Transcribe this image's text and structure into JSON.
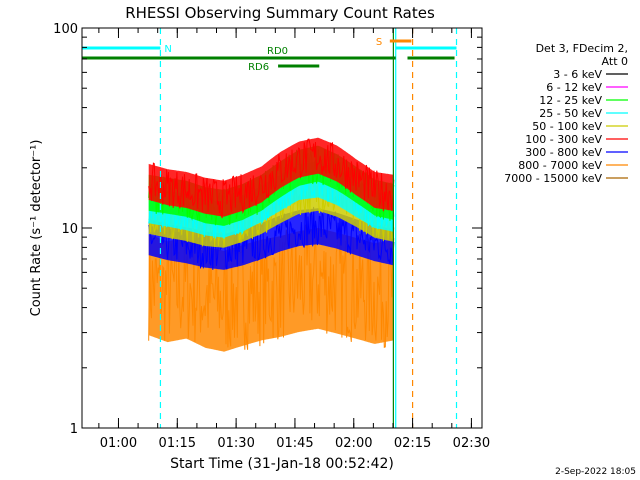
{
  "chart_data": {
    "type": "line",
    "title": "RHESSI Observing Summary Count Rates",
    "xlabel": "Start Time (31-Jan-18 00:52:42)",
    "ylabel": "Count Rate (s⁻¹ detector⁻¹)",
    "yscale": "log",
    "ylim": [
      1,
      100
    ],
    "xlim_minutes": [
      -2,
      100
    ],
    "x_tick_labels": [
      "01:00",
      "01:15",
      "01:30",
      "01:45",
      "02:00",
      "02:15",
      "02:30"
    ],
    "x_tick_minutes": [
      7.3,
      22.3,
      37.3,
      52.3,
      67.3,
      82.3,
      97.3
    ],
    "y_tick_labels": [
      "1",
      "10",
      "100"
    ],
    "y_tick_values": [
      1,
      10,
      100
    ],
    "legend": {
      "header": [
        "Det 3, FDecim 2,",
        "Att 0"
      ],
      "entries": [
        {
          "label": "3 - 6 keV",
          "color": "#000000"
        },
        {
          "label": "6 - 12 keV",
          "color": "#ff00ff"
        },
        {
          "label": "12 - 25 keV",
          "color": "#00ff00"
        },
        {
          "label": "25 - 50 keV",
          "color": "#00ffff"
        },
        {
          "label": "50 - 100 keV",
          "color": "#cccc00"
        },
        {
          "label": "100 - 300 keV",
          "color": "#ff0000"
        },
        {
          "label": "300 - 800 keV",
          "color": "#0000ff"
        },
        {
          "label": "800 - 7000 keV",
          "color": "#ff8800"
        },
        {
          "label": "7000 - 15000 keV",
          "color": "#aa6600"
        }
      ]
    },
    "data_window_minutes": [
      15,
      77.5
    ],
    "series": [
      {
        "name": "800 - 7000 keV",
        "color": "#ff8800",
        "values": [
          5.2,
          4.8,
          5.0,
          4.5,
          4.3,
          4.6,
          4.9,
          5.1,
          5.4,
          5.6,
          5.3,
          5.0,
          4.7,
          4.9
        ]
      },
      {
        "name": "300 - 800 keV",
        "color": "#0000ff",
        "values": [
          9.0,
          8.5,
          8.2,
          7.8,
          7.6,
          8.0,
          8.6,
          9.4,
          10.0,
          10.2,
          9.7,
          9.0,
          8.4,
          8.0
        ]
      },
      {
        "name": "50 - 100 keV",
        "color": "#cccc00",
        "values": [
          11.5,
          11.0,
          10.6,
          10.0,
          9.8,
          10.5,
          11.5,
          13.0,
          14.5,
          15.0,
          14.0,
          12.5,
          11.0,
          10.5
        ]
      },
      {
        "name": "25 - 50 keV",
        "color": "#00ffff",
        "values": [
          13.0,
          12.5,
          12.0,
          11.3,
          11.0,
          11.8,
          13.2,
          15.0,
          17.0,
          17.5,
          16.0,
          14.0,
          12.3,
          11.8
        ]
      },
      {
        "name": "12 - 25 keV",
        "color": "#00ff00",
        "values": [
          15.0,
          14.5,
          14.0,
          13.0,
          12.6,
          13.5,
          15.0,
          17.5,
          20.0,
          21.0,
          19.0,
          16.5,
          14.2,
          13.5
        ]
      },
      {
        "name": "100 - 300 keV",
        "color": "#ff0000",
        "values": [
          17.0,
          16.0,
          15.5,
          14.5,
          14.0,
          15.0,
          16.5,
          19.5,
          22.0,
          23.0,
          21.0,
          18.0,
          15.5,
          15.0
        ]
      }
    ],
    "series_x_minutes": [
      15,
      19.8,
      24.6,
      29.4,
      34.2,
      39.0,
      43.8,
      48.6,
      53.4,
      58.2,
      63.0,
      67.8,
      72.6,
      77.5
    ],
    "state_bars": [
      {
        "label": "N",
        "color": "#00ffff",
        "from": -2,
        "to": 18
      },
      {
        "label": "",
        "color": "#00ffff",
        "from": 78,
        "to": 93.5
      },
      {
        "label": "S",
        "color": "#ff8800",
        "from": 76.5,
        "to": 82
      },
      {
        "label": "RD0",
        "color": "#008000",
        "from": -2,
        "to": 78
      },
      {
        "label": "",
        "color": "#008000",
        "from": 81,
        "to": 93
      },
      {
        "label": "RD6",
        "color": "#008000",
        "from": 48,
        "to": 58.5
      }
    ],
    "vertical_markers": [
      {
        "minute": 18.0,
        "color": "#00ffff",
        "style": "dashed"
      },
      {
        "minute": 78.0,
        "color": "#00ffff",
        "style": "solid"
      },
      {
        "minute": 77.4,
        "color": "#008000",
        "style": "solid"
      },
      {
        "minute": 82.3,
        "color": "#ff8800",
        "style": "dashed"
      },
      {
        "minute": 93.5,
        "color": "#00ffff",
        "style": "dashed"
      }
    ],
    "footer": "2-Sep-2022 18:05"
  }
}
